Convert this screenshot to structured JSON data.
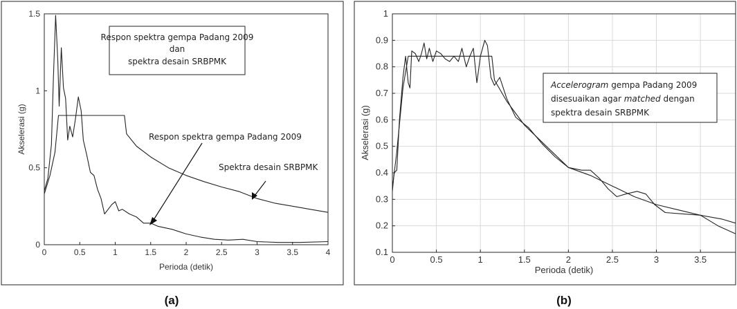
{
  "chart_data": [
    {
      "type": "line",
      "panel_label": "(a)",
      "xlabel": "Perioda (detik)",
      "ylabel": "Akselerasi (g)",
      "xlim": [
        0,
        4
      ],
      "ylim": [
        0,
        1.5
      ],
      "xticks": [
        "0",
        "0.5",
        "1",
        "1.5",
        "2",
        "2.5",
        "3",
        "3.5",
        "4"
      ],
      "yticks": [
        "0",
        "0.5",
        "1",
        "1.5"
      ],
      "grid": false,
      "legend_box": [
        "Respon spektra gempa Padang 2009",
        "dan",
        "spektra desain SRBPMK"
      ],
      "annotations": [
        "Respon spektra gempa Padang 2009",
        "Spektra desain SRBPMK"
      ],
      "series": [
        {
          "points": [
            [
              0,
              0.35
            ],
            [
              0.05,
              0.43
            ],
            [
              0.1,
              0.65
            ],
            [
              0.13,
              1.1
            ],
            [
              0.16,
              1.49
            ],
            [
              0.19,
              1.2
            ],
            [
              0.21,
              0.9
            ],
            [
              0.24,
              1.28
            ],
            [
              0.27,
              1.02
            ],
            [
              0.3,
              0.95
            ],
            [
              0.33,
              0.68
            ],
            [
              0.36,
              0.77
            ],
            [
              0.4,
              0.7
            ],
            [
              0.44,
              0.82
            ],
            [
              0.48,
              0.96
            ],
            [
              0.52,
              0.87
            ],
            [
              0.55,
              0.68
            ],
            [
              0.6,
              0.58
            ],
            [
              0.65,
              0.47
            ],
            [
              0.7,
              0.45
            ],
            [
              0.75,
              0.36
            ],
            [
              0.8,
              0.3
            ],
            [
              0.85,
              0.2
            ],
            [
              0.9,
              0.23
            ],
            [
              0.95,
              0.26
            ],
            [
              1.0,
              0.28
            ],
            [
              1.05,
              0.22
            ],
            [
              1.1,
              0.23
            ],
            [
              1.2,
              0.2
            ],
            [
              1.3,
              0.18
            ],
            [
              1.4,
              0.14
            ],
            [
              1.5,
              0.14
            ],
            [
              1.6,
              0.12
            ],
            [
              1.8,
              0.1
            ],
            [
              2.0,
              0.07
            ],
            [
              2.2,
              0.05
            ],
            [
              2.4,
              0.035
            ],
            [
              2.6,
              0.03
            ],
            [
              2.8,
              0.035
            ],
            [
              3.0,
              0.02
            ],
            [
              3.3,
              0.015
            ],
            [
              3.6,
              0.015
            ],
            [
              4.0,
              0.02
            ]
          ]
        },
        {
          "points": [
            [
              0,
              0.33
            ],
            [
              0.08,
              0.45
            ],
            [
              0.15,
              0.6
            ],
            [
              0.2,
              0.84
            ],
            [
              1.13,
              0.84
            ],
            [
              1.16,
              0.72
            ],
            [
              1.3,
              0.64
            ],
            [
              1.5,
              0.57
            ],
            [
              1.75,
              0.5
            ],
            [
              2.0,
              0.45
            ],
            [
              2.25,
              0.41
            ],
            [
              2.5,
              0.375
            ],
            [
              2.75,
              0.345
            ],
            [
              3.0,
              0.3
            ],
            [
              3.25,
              0.27
            ],
            [
              3.5,
              0.25
            ],
            [
              3.75,
              0.23
            ],
            [
              4.0,
              0.21
            ]
          ]
        }
      ]
    },
    {
      "type": "line",
      "panel_label": "(b)",
      "xlabel": "Perioda (detik)",
      "ylabel": "Akselerasi (g)",
      "xlim": [
        0,
        3.9
      ],
      "ylim": [
        0.1,
        1.0
      ],
      "xticks": [
        "0",
        "0.5",
        "1",
        "1.5",
        "2",
        "2.5",
        "3",
        "3.5"
      ],
      "yticks": [
        "0.1",
        "0.2",
        "0.3",
        "0.4",
        "0.5",
        "0.6",
        "0.7",
        "0.8",
        "0.9",
        "1"
      ],
      "grid": true,
      "legend_box": [
        "Accelerogram gempa Padang 2009",
        "disesuaikan agar matched dengan",
        "spektra desain SRBPMK"
      ],
      "series": [
        {
          "points": [
            [
              0,
              0.33
            ],
            [
              0.02,
              0.4
            ],
            [
              0.05,
              0.41
            ],
            [
              0.08,
              0.6
            ],
            [
              0.12,
              0.76
            ],
            [
              0.15,
              0.84
            ],
            [
              0.18,
              0.74
            ],
            [
              0.2,
              0.72
            ],
            [
              0.22,
              0.86
            ],
            [
              0.26,
              0.85
            ],
            [
              0.3,
              0.82
            ],
            [
              0.33,
              0.85
            ],
            [
              0.36,
              0.89
            ],
            [
              0.39,
              0.83
            ],
            [
              0.42,
              0.87
            ],
            [
              0.46,
              0.82
            ],
            [
              0.5,
              0.86
            ],
            [
              0.55,
              0.85
            ],
            [
              0.6,
              0.83
            ],
            [
              0.65,
              0.82
            ],
            [
              0.7,
              0.84
            ],
            [
              0.75,
              0.82
            ],
            [
              0.79,
              0.87
            ],
            [
              0.84,
              0.8
            ],
            [
              0.88,
              0.84
            ],
            [
              0.92,
              0.87
            ],
            [
              0.96,
              0.74
            ],
            [
              1.0,
              0.84
            ],
            [
              1.05,
              0.9
            ],
            [
              1.08,
              0.88
            ],
            [
              1.12,
              0.76
            ],
            [
              1.16,
              0.73
            ],
            [
              1.22,
              0.76
            ],
            [
              1.3,
              0.68
            ],
            [
              1.4,
              0.61
            ],
            [
              1.55,
              0.57
            ],
            [
              1.7,
              0.51
            ],
            [
              1.85,
              0.46
            ],
            [
              2.0,
              0.42
            ],
            [
              2.15,
              0.41
            ],
            [
              2.25,
              0.41
            ],
            [
              2.35,
              0.38
            ],
            [
              2.45,
              0.34
            ],
            [
              2.55,
              0.31
            ],
            [
              2.65,
              0.32
            ],
            [
              2.78,
              0.33
            ],
            [
              2.88,
              0.32
            ],
            [
              2.98,
              0.28
            ],
            [
              3.1,
              0.25
            ],
            [
              3.3,
              0.245
            ],
            [
              3.5,
              0.24
            ],
            [
              3.7,
              0.2
            ],
            [
              3.9,
              0.17
            ]
          ]
        },
        {
          "points": [
            [
              0,
              0.34
            ],
            [
              0.05,
              0.48
            ],
            [
              0.12,
              0.72
            ],
            [
              0.18,
              0.84
            ],
            [
              1.13,
              0.84
            ],
            [
              1.16,
              0.75
            ],
            [
              1.3,
              0.67
            ],
            [
              1.5,
              0.58
            ],
            [
              1.75,
              0.5
            ],
            [
              2.0,
              0.42
            ],
            [
              2.25,
              0.39
            ],
            [
              2.5,
              0.35
            ],
            [
              2.75,
              0.31
            ],
            [
              3.0,
              0.28
            ],
            [
              3.25,
              0.26
            ],
            [
              3.5,
              0.24
            ],
            [
              3.75,
              0.225
            ],
            [
              3.9,
              0.21
            ]
          ]
        }
      ]
    }
  ]
}
